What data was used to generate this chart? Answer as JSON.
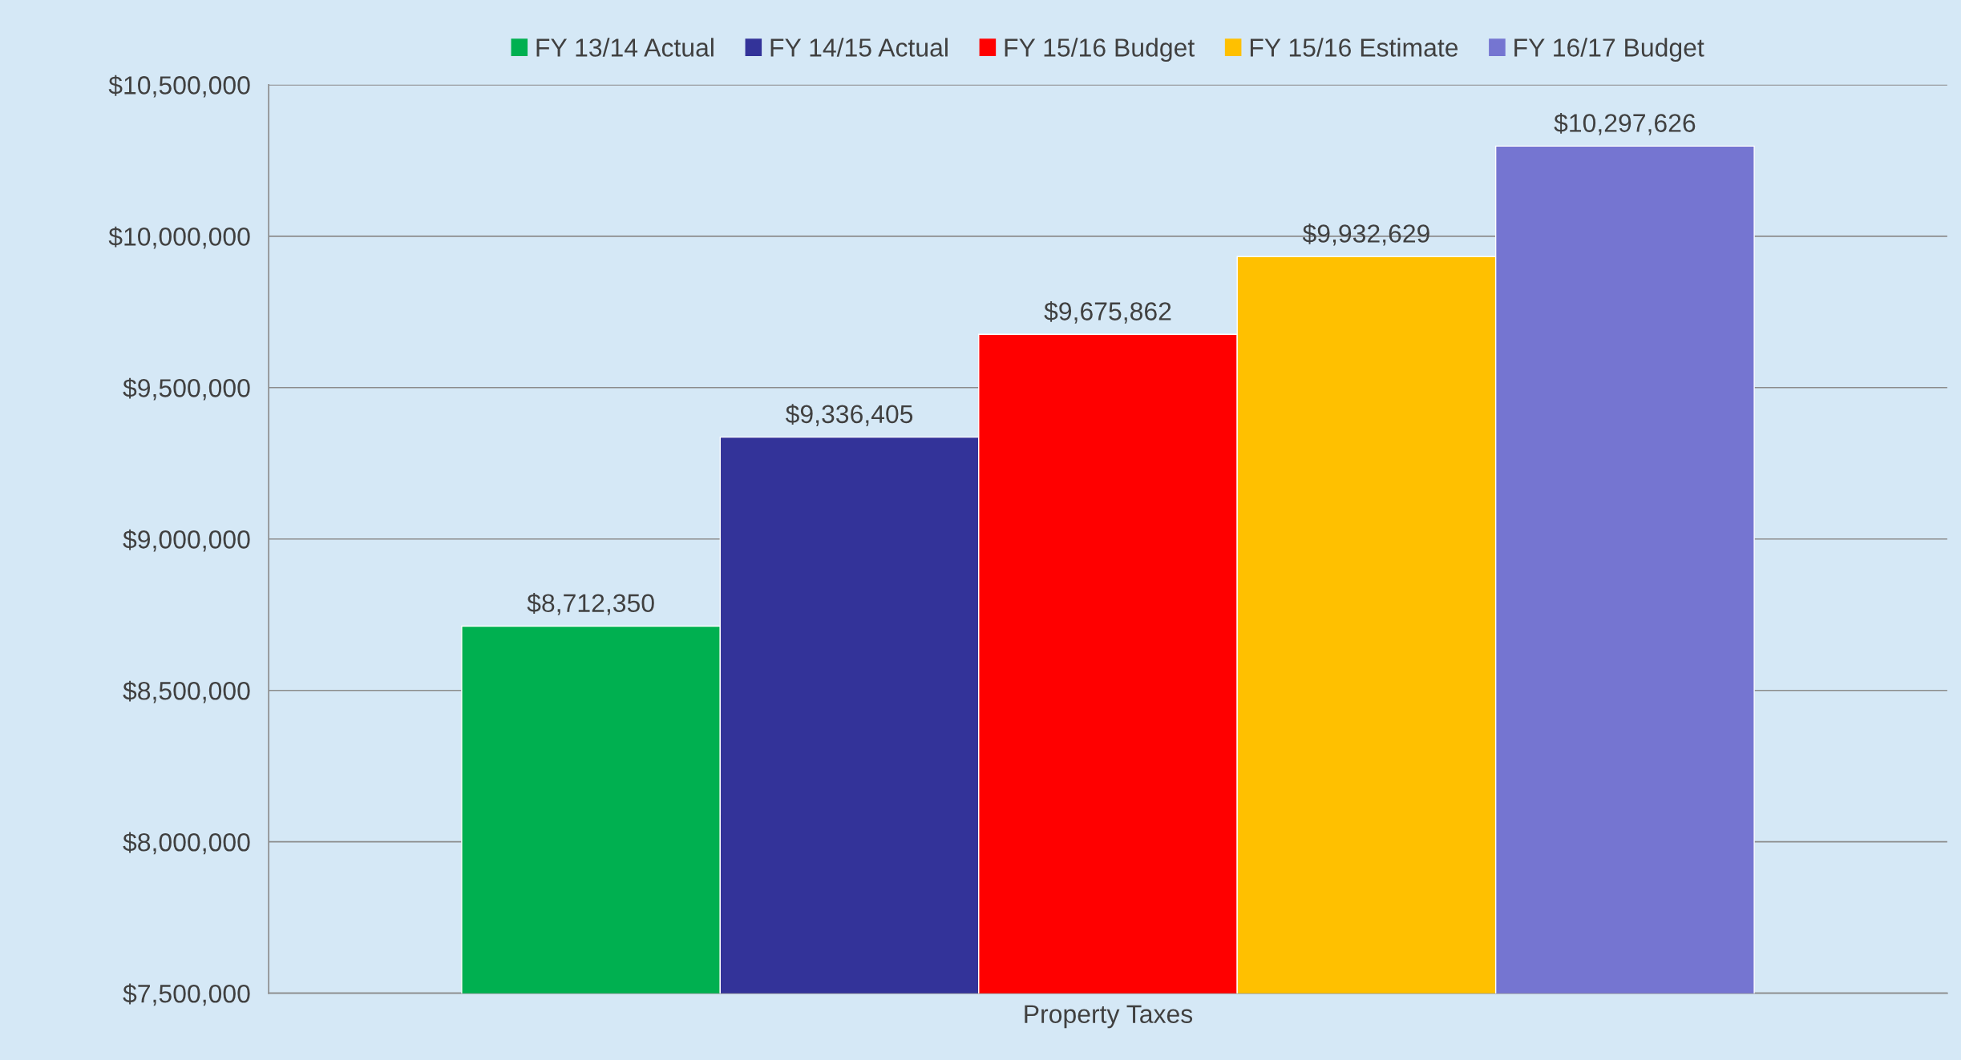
{
  "chart_data": {
    "type": "bar",
    "categories": [
      "Property Taxes"
    ],
    "series": [
      {
        "name": "FY 13/14 Actual",
        "color": "#00b050",
        "values": [
          8712350
        ],
        "value_labels": [
          "$8,712,350"
        ]
      },
      {
        "name": "FY 14/15 Actual",
        "color": "#333399",
        "values": [
          9336405
        ],
        "value_labels": [
          "$9,336,405"
        ]
      },
      {
        "name": "FY 15/16 Budget",
        "color": "#ff0000",
        "values": [
          9675862
        ],
        "value_labels": [
          "$9,675,862"
        ]
      },
      {
        "name": "FY 15/16 Estimate",
        "color": "#ffc000",
        "values": [
          9932629
        ],
        "value_labels": [
          "$9,932,629"
        ]
      },
      {
        "name": "FY 16/17 Budget",
        "color": "#7575d1",
        "values": [
          10297626
        ],
        "value_labels": [
          "$10,297,626"
        ]
      }
    ],
    "ylim": [
      7500000,
      10500000
    ],
    "yticks": [
      {
        "value": 7500000,
        "label": "$7,500,000"
      },
      {
        "value": 8000000,
        "label": "$8,000,000"
      },
      {
        "value": 8500000,
        "label": "$8,500,000"
      },
      {
        "value": 9000000,
        "label": "$9,000,000"
      },
      {
        "value": 9500000,
        "label": "$9,500,000"
      },
      {
        "value": 10000000,
        "label": "$10,000,000"
      },
      {
        "value": 10500000,
        "label": "$10,500,000"
      }
    ],
    "grid": "y",
    "legend": "top"
  }
}
